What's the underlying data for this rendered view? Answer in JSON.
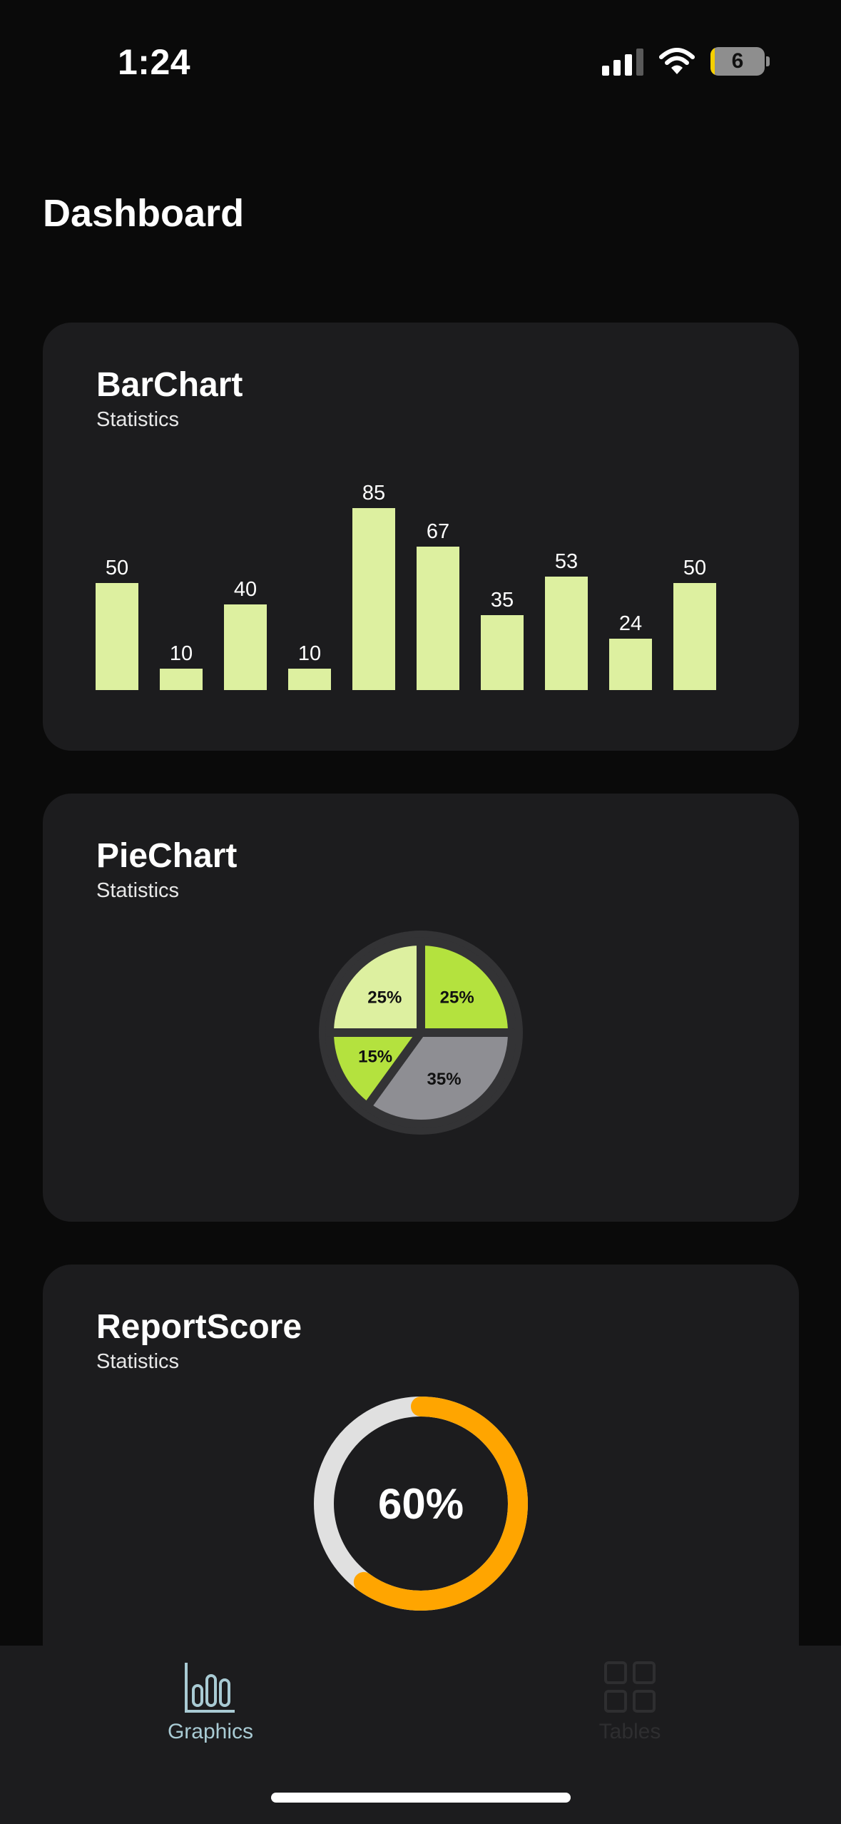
{
  "status_bar": {
    "time": "1:24",
    "battery": "6",
    "icons": [
      "cellular-signal-icon",
      "wifi-icon",
      "battery-icon"
    ]
  },
  "page": {
    "title": "Dashboard"
  },
  "bar_card": {
    "title": "BarChart",
    "subtitle": "Statistics"
  },
  "pie_card": {
    "title": "PieChart",
    "subtitle": "Statistics"
  },
  "score_card": {
    "title": "ReportScore",
    "subtitle": "Statistics",
    "value": 60,
    "label": "60%"
  },
  "chart_data": [
    {
      "type": "bar",
      "title": "BarChart",
      "subtitle": "Statistics",
      "values": [
        50,
        10,
        40,
        10,
        85,
        67,
        35,
        53,
        24,
        50
      ],
      "value_labels": [
        "50",
        "10",
        "40",
        "10",
        "85",
        "67",
        "35",
        "53",
        "24",
        "50"
      ],
      "color": "#ddf0a0",
      "grid": false
    },
    {
      "type": "pie",
      "title": "PieChart",
      "subtitle": "Statistics",
      "slices": [
        {
          "label": "25%",
          "value": 25,
          "color": "#b4e23e"
        },
        {
          "label": "35%",
          "value": 35,
          "color": "#8e8e93"
        },
        {
          "label": "15%",
          "value": 15,
          "color": "#b4e23e"
        },
        {
          "label": "25%",
          "value": 25,
          "color": "#ddf0a0"
        }
      ]
    }
  ],
  "colors": {
    "background": "#0a0a0a",
    "card": "#1c1c1e",
    "bar": "#ddf0a0",
    "score_progress": "#ffa500",
    "score_track": "#e0e0e0",
    "tab_active": "#a9cbd4",
    "tab_inactive": "#2e2e30"
  },
  "tab_bar": {
    "tabs": [
      {
        "label": "Graphics",
        "icon": "bar-chart-icon",
        "active": true
      },
      {
        "label": "Tables",
        "icon": "grid-icon",
        "active": false
      }
    ]
  }
}
